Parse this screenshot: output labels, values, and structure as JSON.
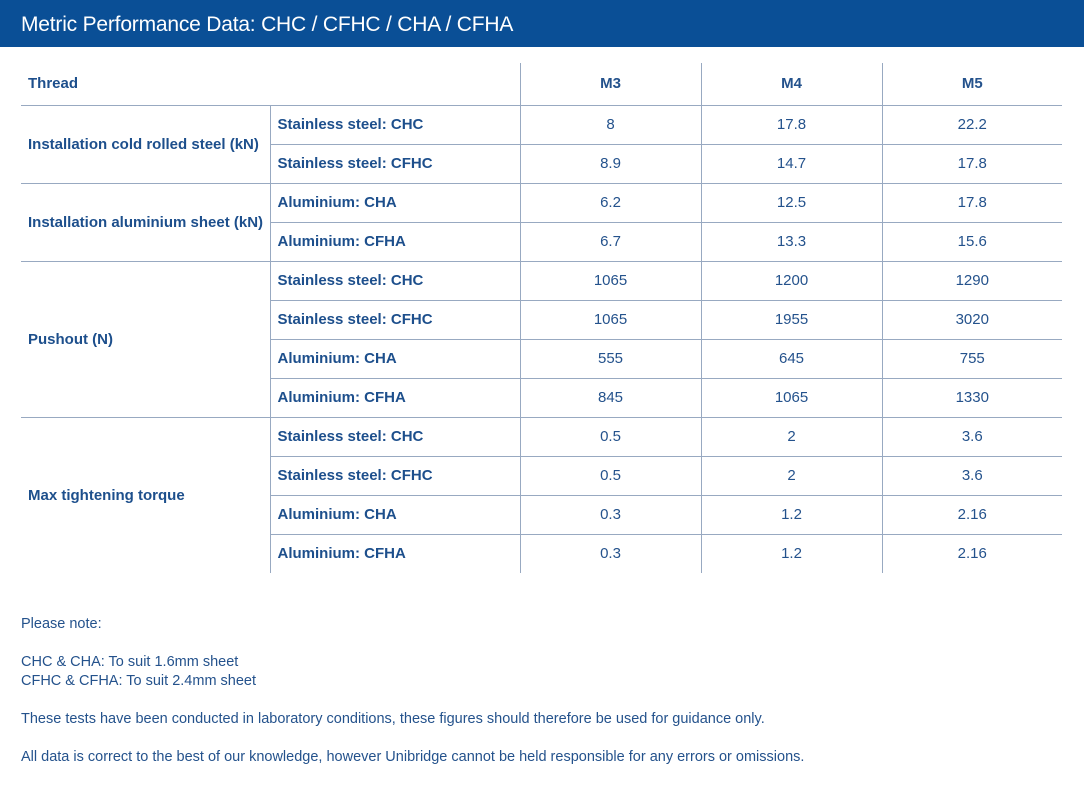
{
  "title": "Metric Performance Data: CHC / CFHC / CHA / CFHA",
  "table": {
    "header": {
      "thread_label": "Thread",
      "columns": [
        "M3",
        "M4",
        "M5"
      ]
    },
    "groups": [
      {
        "label": "Installation cold rolled steel (kN)",
        "rows": [
          {
            "material": "Stainless steel: CHC",
            "values": [
              "8",
              "17.8",
              "22.2"
            ]
          },
          {
            "material": "Stainless steel: CFHC",
            "values": [
              "8.9",
              "14.7",
              "17.8"
            ]
          }
        ]
      },
      {
        "label": "Installation aluminium sheet (kN)",
        "rows": [
          {
            "material": "Aluminium: CHA",
            "values": [
              "6.2",
              "12.5",
              "17.8"
            ]
          },
          {
            "material": "Aluminium: CFHA",
            "values": [
              "6.7",
              "13.3",
              "15.6"
            ]
          }
        ]
      },
      {
        "label": "Pushout (N)",
        "rows": [
          {
            "material": "Stainless steel: CHC",
            "values": [
              "1065",
              "1200",
              "1290"
            ]
          },
          {
            "material": "Stainless steel: CFHC",
            "values": [
              "1065",
              "1955",
              "3020"
            ]
          },
          {
            "material": "Aluminium: CHA",
            "values": [
              "555",
              "645",
              "755"
            ]
          },
          {
            "material": "Aluminium: CFHA",
            "values": [
              "845",
              "1065",
              "1330"
            ]
          }
        ]
      },
      {
        "label": "Max tightening torque",
        "rows": [
          {
            "material": "Stainless steel: CHC",
            "values": [
              "0.5",
              "2",
              "3.6"
            ]
          },
          {
            "material": "Stainless steel: CFHC",
            "values": [
              "0.5",
              "2",
              "3.6"
            ]
          },
          {
            "material": "Aluminium: CHA",
            "values": [
              "0.3",
              "1.2",
              "2.16"
            ]
          },
          {
            "material": "Aluminium: CFHA",
            "values": [
              "0.3",
              "1.2",
              "2.16"
            ]
          }
        ]
      }
    ]
  },
  "notes": {
    "heading": "Please note:",
    "line1": "CHC & CHA: To suit 1.6mm sheet",
    "line2": "CFHC & CFHA: To suit 2.4mm sheet",
    "line3": "These tests have been conducted in laboratory conditions, these figures should therefore be used for guidance only.",
    "line4": "All data is correct to the best of our knowledge, however Unibridge cannot be held responsible for any errors or omissions."
  },
  "colors": {
    "title_bar": "#0a4f96",
    "text": "#1d4f8c",
    "grid": "#98a9c1"
  }
}
